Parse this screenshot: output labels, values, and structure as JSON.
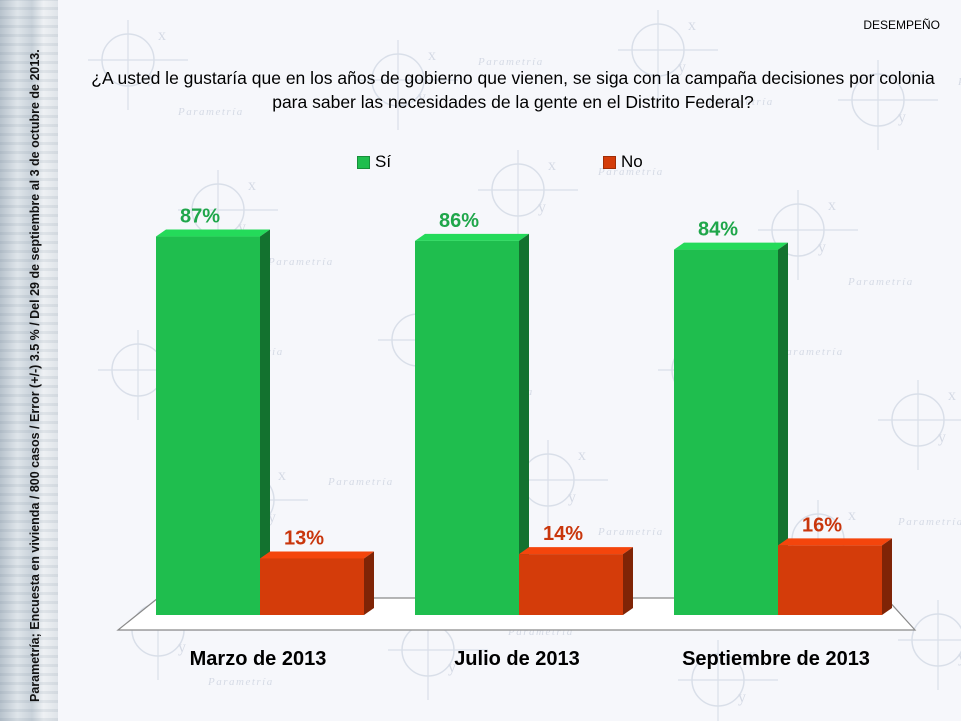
{
  "header": {
    "section": "DESEMPEÑO",
    "question": "¿A usted le gustaría que en los años de gobierno que vienen, se siga con la campaña decisiones por colonia para saber las necesidades de la gente en el Distrito Federal?"
  },
  "source_note": "Parametría; Encuesta en vivienda / 800 casos / Error (+/-) 3.5 % / Del 29 de septiembre al 3 de octubre de 2013.",
  "watermark": {
    "brand": "Parametría"
  },
  "colors": {
    "si": "#1fbe4e",
    "no": "#d43c0a",
    "si_label": "#1fa64a",
    "no_label": "#c9360c"
  },
  "chart_data": {
    "type": "bar",
    "categories": [
      "Marzo de 2013",
      "Julio de 2013",
      "Septiembre de 2013"
    ],
    "series": [
      {
        "name": "Sí",
        "values": [
          87,
          86,
          84
        ],
        "labels": [
          "87%",
          "86%",
          "84%"
        ]
      },
      {
        "name": "No",
        "values": [
          13,
          14,
          16
        ],
        "labels": [
          "13%",
          "14%",
          "16%"
        ]
      }
    ],
    "ylim": [
      0,
      100
    ],
    "grid": false,
    "legend": "top"
  }
}
